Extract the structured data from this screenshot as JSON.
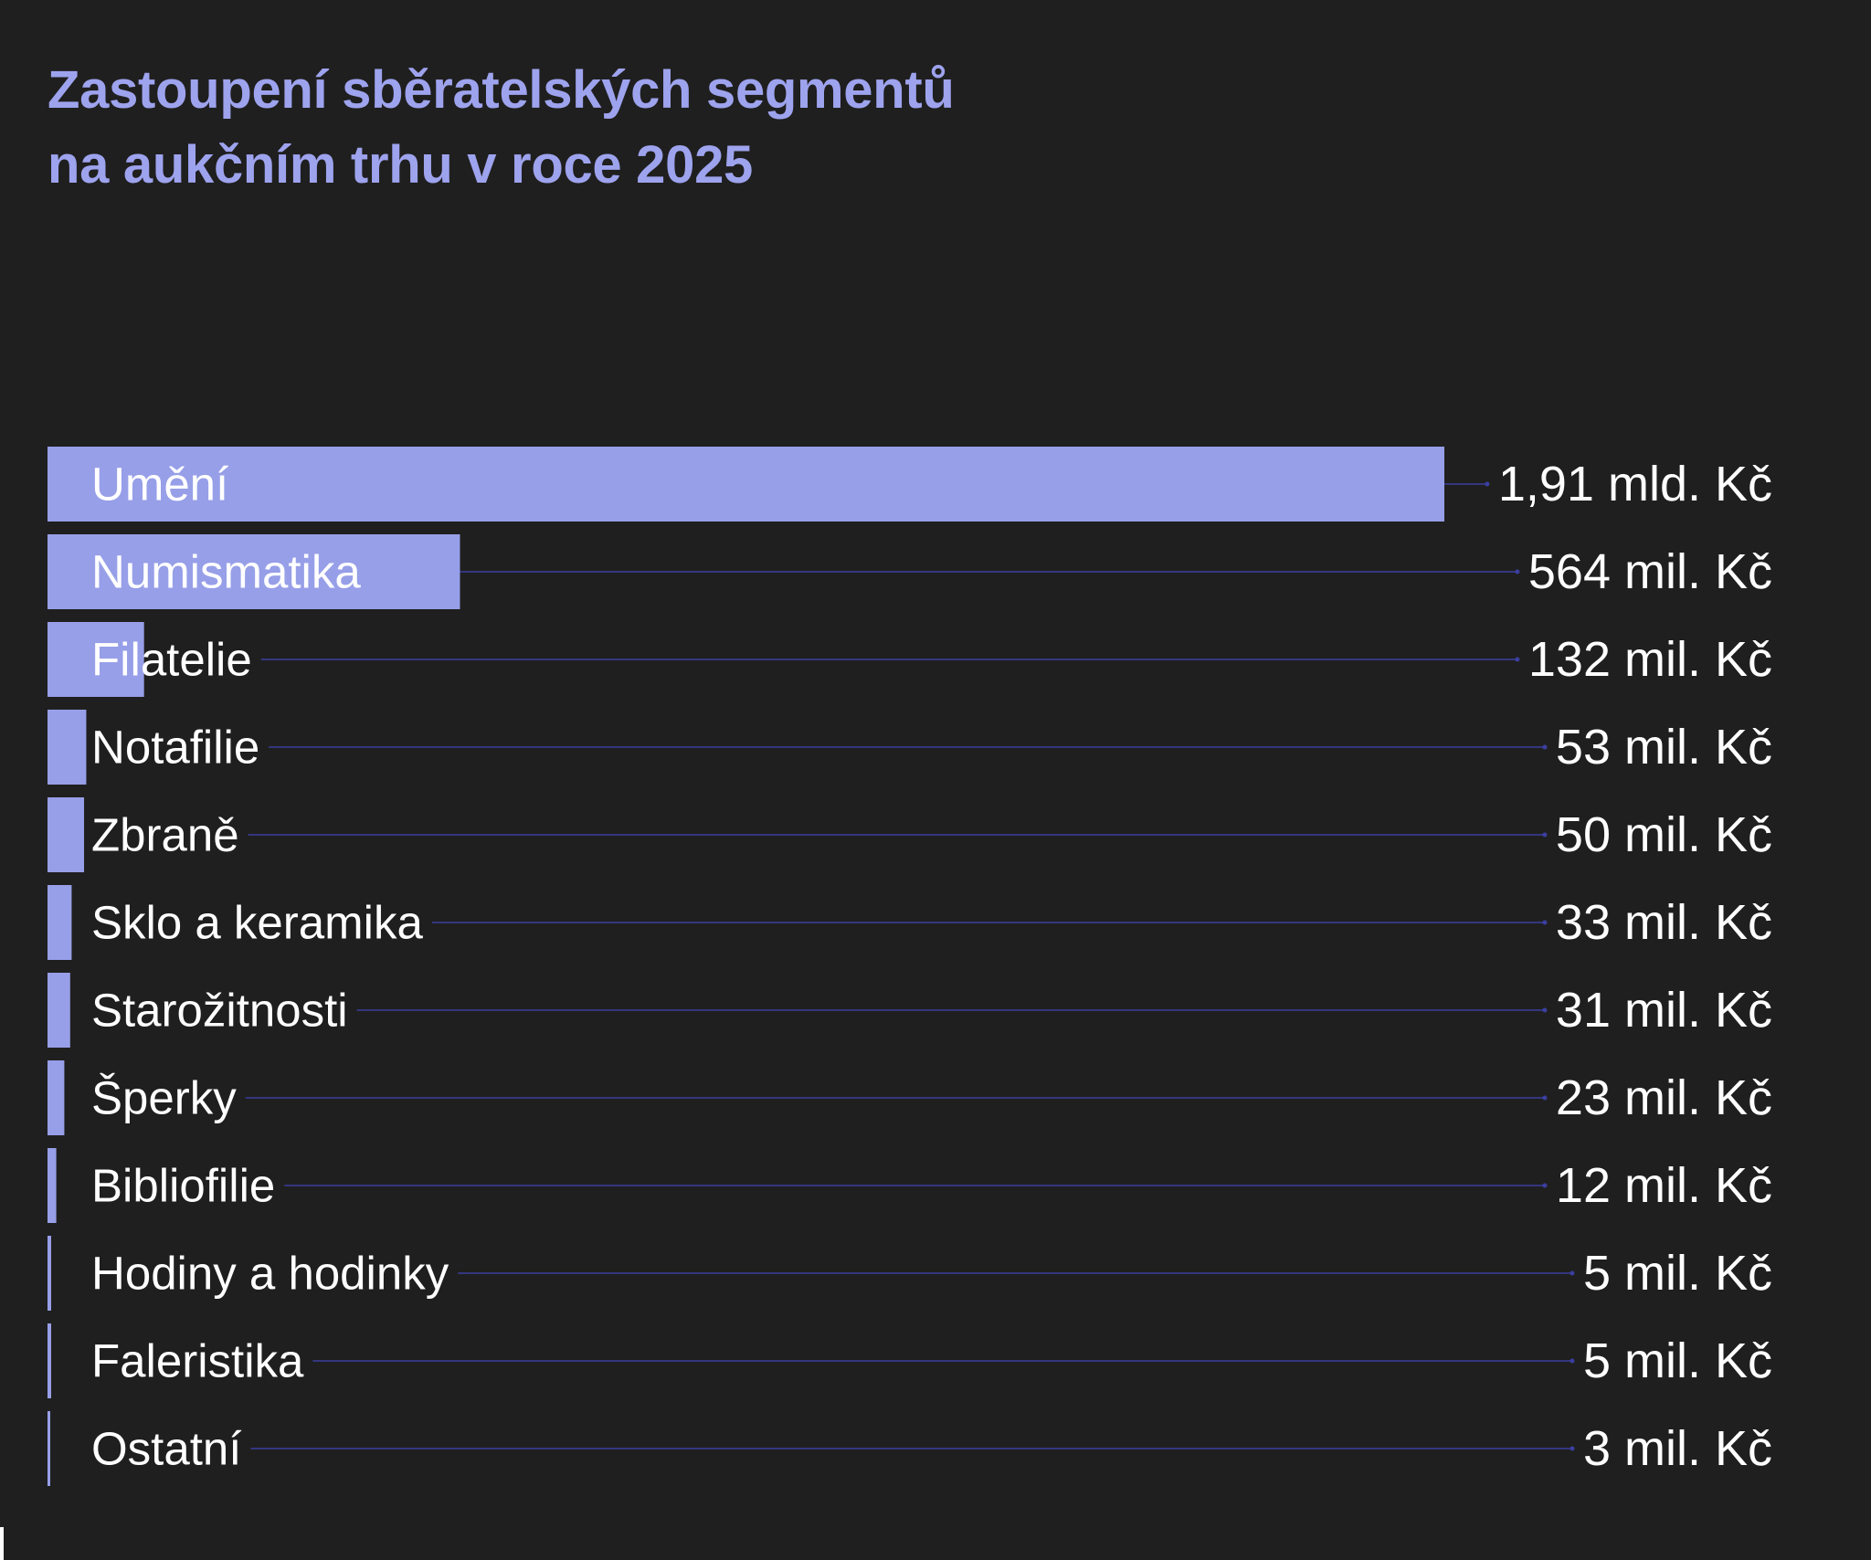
{
  "colors": {
    "background": "#1f1f1f",
    "bar": "#979fe8",
    "title": "#9ea3ee",
    "leader_line": "#3b3fa0",
    "text": "#ffffff"
  },
  "chart_data": {
    "type": "bar",
    "orientation": "horizontal",
    "title_lines": [
      "Zastoupení sběratelských segmentů",
      "na aukčním trhu v roce 2025"
    ],
    "unit": "mil. Kč",
    "categories": [
      "Umění",
      "Numismatika",
      "Filatelie",
      "Notafilie",
      "Zbraně",
      "Sklo a keramika",
      "Starožitnosti",
      "Šperky",
      "Bibliofilie",
      "Hodiny a hodinky",
      "Faleristika",
      "Ostatní"
    ],
    "values": [
      1910,
      564,
      132,
      53,
      50,
      33,
      31,
      23,
      12,
      5,
      5,
      3
    ],
    "value_labels": [
      "1,91 mld. Kč",
      "564 mil. Kč",
      "132 mil. Kč",
      "53 mil. Kč",
      "50 mil. Kč",
      "33 mil. Kč",
      "31 mil. Kč",
      "23 mil. Kč",
      "12 mil. Kč",
      "5 mil. Kč",
      "5 mil. Kč",
      "3 mil. Kč"
    ],
    "grid": false,
    "legend": "none"
  }
}
